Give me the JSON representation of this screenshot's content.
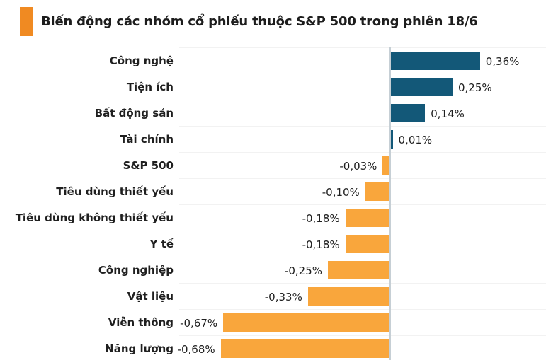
{
  "header": {
    "title": "Biến động các nhóm cổ phiếu thuộc S&P 500 trong phiên 18/6",
    "accent_color": "#F08A22"
  },
  "chart_data": {
    "type": "bar",
    "orientation": "horizontal",
    "title": "Biến động các nhóm cổ phiếu thuộc S&P 500 trong phiên 18/6",
    "xlabel": "",
    "ylabel": "",
    "xlim": [
      -0.85,
      0.62
    ],
    "grid": true,
    "unit": "%",
    "categories": [
      "Công nghệ",
      "Tiện ích",
      "Bất động sản",
      "Tài chính",
      "S&P 500",
      "Tiêu dùng thiết yếu",
      "Tiêu dùng không thiết yếu",
      "Y tế",
      "Công nghiệp",
      "Vật liệu",
      "Viễn thông",
      "Năng lượng"
    ],
    "values": [
      0.36,
      0.25,
      0.14,
      0.01,
      -0.03,
      -0.1,
      -0.18,
      -0.18,
      -0.25,
      -0.33,
      -0.67,
      -0.68
    ],
    "value_labels": [
      "0,36%",
      "0,25%",
      "0,14%",
      "0,01%",
      "-0,03%",
      "-0,10%",
      "-0,18%",
      "-0,18%",
      "-0,25%",
      "-0,33%",
      "-0,67%",
      "-0,68%"
    ],
    "positive_color": "#135878",
    "negative_color": "#F9A63C",
    "zero_line_color": "#c6cfd5",
    "grid_color": "#f2f2f2",
    "label_color": "#1f1f1f"
  }
}
